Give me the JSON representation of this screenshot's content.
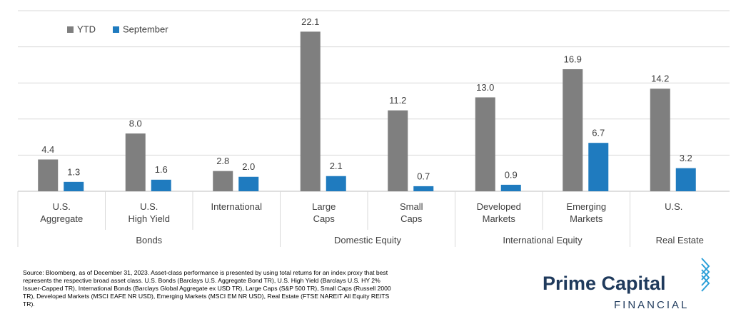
{
  "chart_data": {
    "type": "bar",
    "categories": [
      "U.S.\nAggregate",
      "U.S.\nHigh Yield",
      "International",
      "Large\nCaps",
      "Small\nCaps",
      "Developed\nMarkets",
      "Emerging\nMarkets",
      "U.S."
    ],
    "category_groups": [
      "Bonds",
      "Bonds",
      "Bonds",
      "Domestic Equity",
      "Domestic Equity",
      "International Equity",
      "International Equity",
      "Real Estate"
    ],
    "series": [
      {
        "name": "YTD",
        "color": "#7f7f7f",
        "values": [
          4.4,
          8.0,
          2.8,
          22.1,
          11.2,
          13.0,
          16.9,
          14.2
        ],
        "value_labels": [
          "4.4",
          "8.0",
          "2.8",
          "22.1",
          "11.2",
          "13.0",
          "16.9",
          "14.2"
        ]
      },
      {
        "name": "September",
        "color": "#1f7bbf",
        "values": [
          1.3,
          1.6,
          2.0,
          2.1,
          0.7,
          0.9,
          6.7,
          3.2
        ],
        "value_labels": [
          "1.3",
          "1.6",
          "2.0",
          "2.1",
          "0.7",
          "0.9",
          "6.7",
          "3.2"
        ]
      }
    ],
    "ylim": [
      0,
      25
    ],
    "yticks": [
      0,
      5,
      10,
      15,
      20,
      25
    ],
    "grid": true,
    "legend": "top-left"
  },
  "source": "Source: Bloomberg, as of December 31, 2023. Asset-class performance is presented by using total returns for an index proxy that best represents the respective broad asset class. U.S. Bonds (Barclays U.S. Aggregate Bond TR), U.S. High Yield (Barclays U.S. HY 2% Issuer-Capped TR), International Bonds (Barclays Global Aggregate ex USD TR), Large Caps (S&P 500 TR), Small Caps (Russell 2000 TR), Developed Markets (MSCI EAFE NR USD), Emerging Markets (MSCI EM NR USD), Real Estate (FTSE NAREIT All Equity REITS TR).",
  "logo": {
    "name": "Prime Capital",
    "tagline": "FINANCIAL"
  }
}
